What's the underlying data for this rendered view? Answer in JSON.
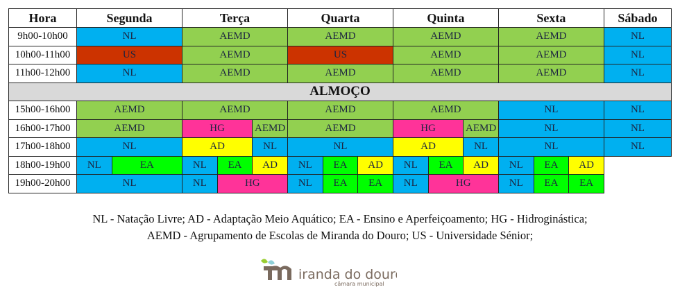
{
  "colors": {
    "NL": "#00b0f0",
    "AEMD": "#92d050",
    "US": "#cc3300",
    "HG": "#ff3399",
    "AD": "#ffff00",
    "EA": "#00ff00"
  },
  "header": [
    "Hora",
    "Segunda",
    "Terça",
    "Quarta",
    "Quinta",
    "Sexta",
    "Sábado"
  ],
  "lunch": "ALMOÇO",
  "rows": [
    {
      "hora": "9h00-10h00",
      "cells": [
        [
          "NL",
          3
        ],
        [
          "AEMD",
          3
        ],
        [
          "AEMD",
          3
        ],
        [
          "AEMD",
          3
        ],
        [
          "AEMD",
          3
        ],
        [
          "NL",
          1
        ]
      ]
    },
    {
      "hora": "10h00-11h00",
      "cells": [
        [
          "US",
          3
        ],
        [
          "AEMD",
          3
        ],
        [
          "US",
          3
        ],
        [
          "AEMD",
          3
        ],
        [
          "AEMD",
          3
        ],
        [
          "NL",
          1
        ]
      ]
    },
    {
      "hora": "11h00-12h00",
      "cells": [
        [
          "NL",
          3
        ],
        [
          "AEMD",
          3
        ],
        [
          "AEMD",
          3
        ],
        [
          "AEMD",
          3
        ],
        [
          "AEMD",
          3
        ],
        [
          "NL",
          1
        ]
      ]
    },
    {
      "lunch": true
    },
    {
      "hora": "15h00-16h00",
      "cells": [
        [
          "AEMD",
          3
        ],
        [
          "AEMD",
          3
        ],
        [
          "AEMD",
          3
        ],
        [
          "AEMD",
          3
        ],
        [
          "NL",
          3
        ],
        [
          "NL",
          1
        ]
      ]
    },
    {
      "hora": "16h00-17h00",
      "cells": [
        [
          "AEMD",
          3
        ],
        [
          "HG",
          2
        ],
        [
          "AEMD",
          1
        ],
        [
          "AEMD",
          3
        ],
        [
          "HG",
          2
        ],
        [
          "AEMD",
          1
        ],
        [
          "NL",
          3
        ],
        [
          "NL",
          1
        ]
      ]
    },
    {
      "hora": "17h00-18h00",
      "cells": [
        [
          "NL",
          3
        ],
        [
          "AD",
          2
        ],
        [
          "NL",
          1
        ],
        [
          "NL",
          3
        ],
        [
          "AD",
          2
        ],
        [
          "NL",
          1
        ],
        [
          "NL",
          3
        ],
        [
          "NL",
          1
        ]
      ]
    },
    {
      "hora": "18h00-19h00",
      "cells": [
        [
          "NL",
          1
        ],
        [
          "EA",
          2
        ],
        [
          "NL",
          1
        ],
        [
          "EA",
          1
        ],
        [
          "AD",
          1
        ],
        [
          "NL",
          1
        ],
        [
          "EA",
          1
        ],
        [
          "AD",
          1
        ],
        [
          "NL",
          1
        ],
        [
          "EA",
          1
        ],
        [
          "AD",
          1
        ],
        [
          "NL",
          1
        ],
        [
          "EA",
          1
        ],
        [
          "AD",
          1
        ],
        [
          "",
          1
        ]
      ]
    },
    {
      "hora": "19h00-20h00",
      "cells": [
        [
          "NL",
          3
        ],
        [
          "NL",
          1
        ],
        [
          "HG",
          2
        ],
        [
          "NL",
          1
        ],
        [
          "EA",
          1
        ],
        [
          "EA",
          1
        ],
        [
          "NL",
          1
        ],
        [
          "HG",
          2
        ],
        [
          "NL",
          1
        ],
        [
          "EA",
          1
        ],
        [
          "EA",
          1
        ],
        [
          "",
          1
        ]
      ]
    }
  ],
  "legend": [
    "NL - Natação Livre; AD - Adaptação Meio Aquático; EA - Ensino e Aperfeiçoamento; HG - Hidroginástica;",
    "AEMD - Agrupamento de Escolas de Miranda do Douro; US - Universidade Sénior;"
  ],
  "logo": {
    "name": "miranda do douro",
    "sub": "câmara municipal"
  }
}
